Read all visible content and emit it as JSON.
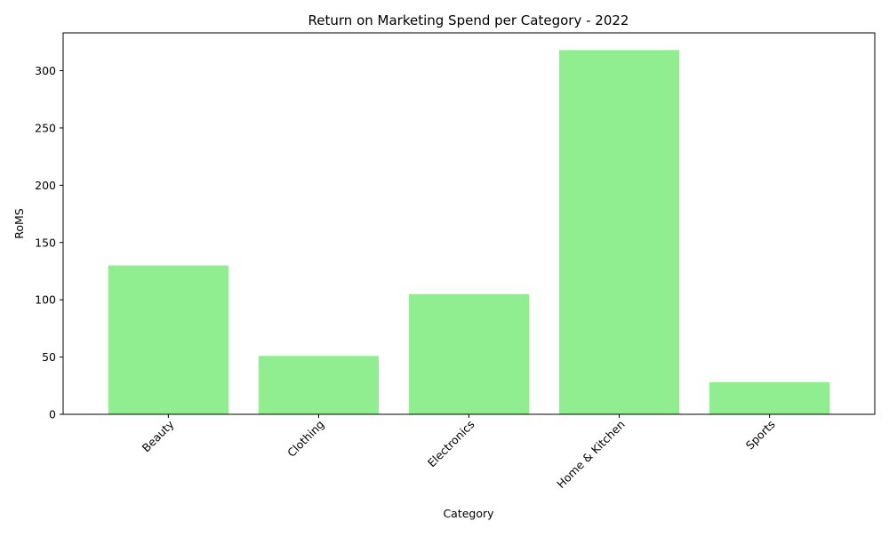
{
  "chart_data": {
    "type": "bar",
    "title": "Return on Marketing Spend per Category - 2022",
    "xlabel": "Category",
    "ylabel": "RoMS",
    "categories": [
      "Beauty",
      "Clothing",
      "Electronics",
      "Home & Kitchen",
      "Sports"
    ],
    "values": [
      130,
      51,
      105,
      318,
      28
    ],
    "ylim": [
      0,
      333
    ],
    "yticks": [
      0,
      50,
      100,
      150,
      200,
      250,
      300
    ],
    "bar_color": "#90EE90",
    "grid": false,
    "legend": "none",
    "xtick_rotation": "45 degrees"
  }
}
